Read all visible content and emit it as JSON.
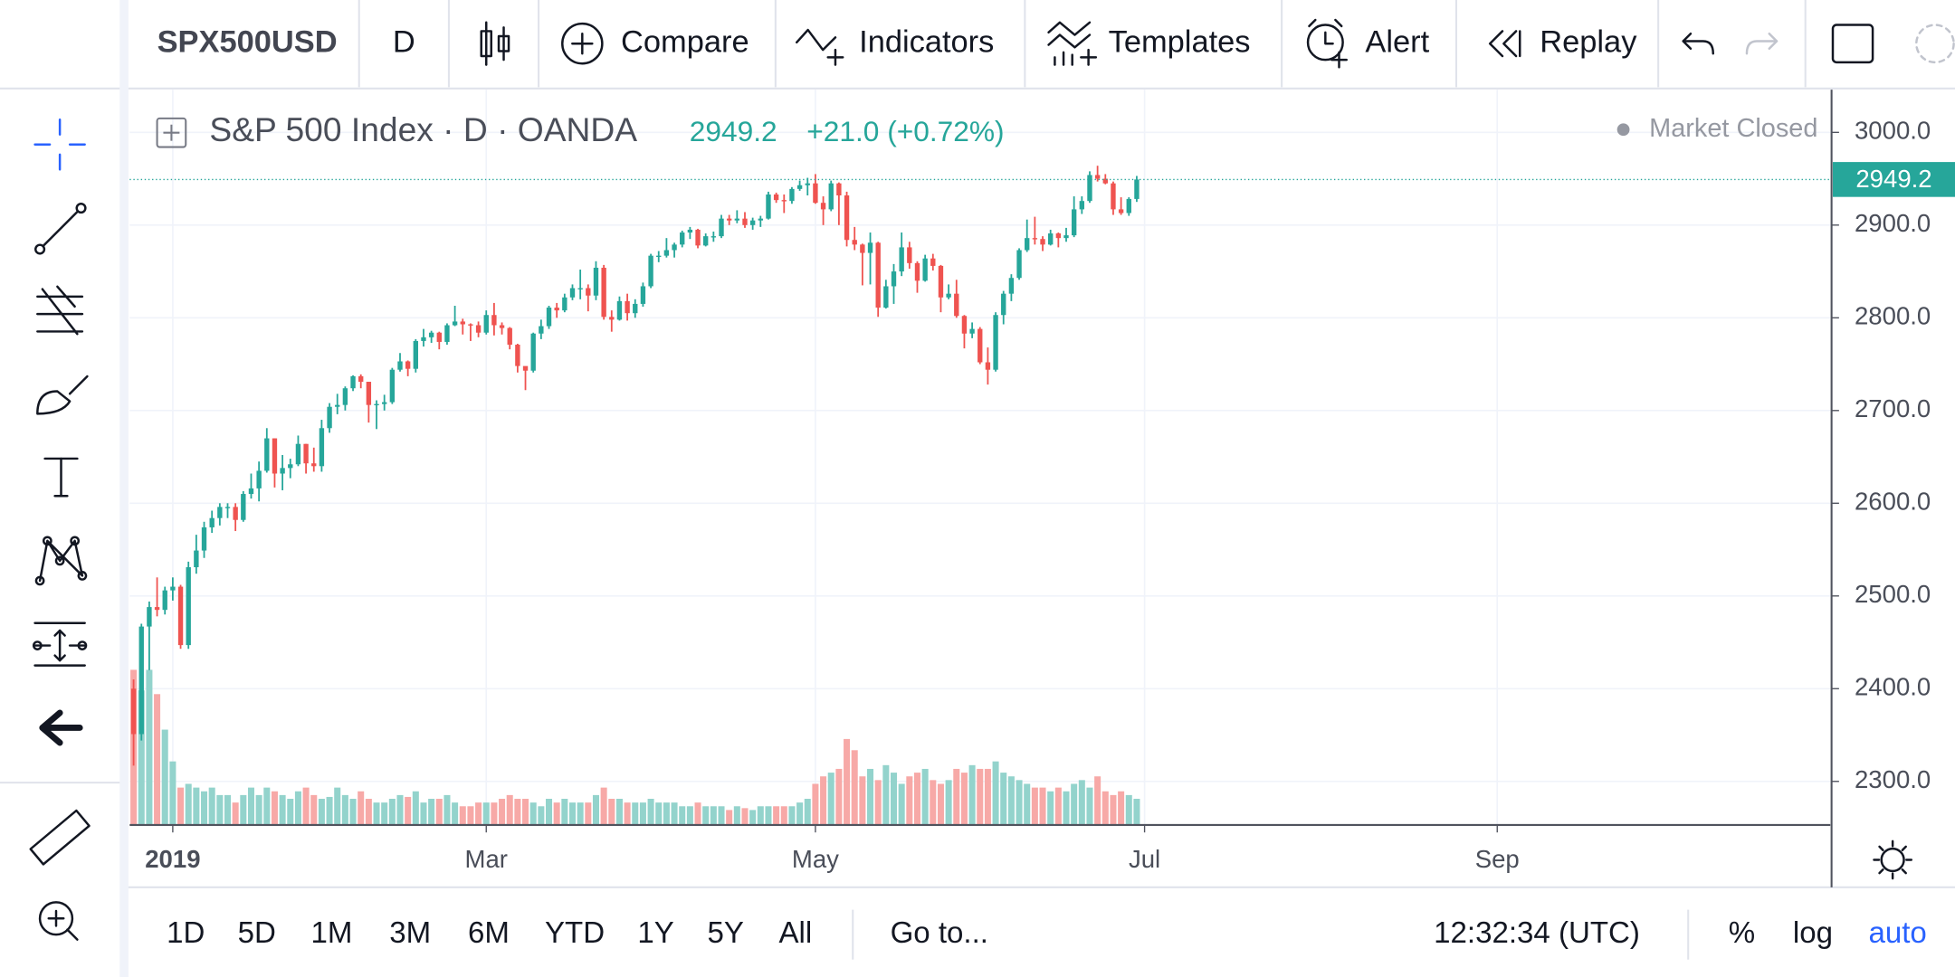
{
  "toolbar": {
    "symbol": "SPX500USD",
    "interval": "D",
    "compare": "Compare",
    "indicators": "Indicators",
    "templates": "Templates",
    "alert": "Alert",
    "replay": "Replay"
  },
  "legend": {
    "title": "S&P 500 Index · D · OANDA",
    "change": "+21.0 (+0.72%)",
    "status": "Market Closed"
  },
  "chart_data": {
    "type": "candlestick",
    "open": [
      2400,
      2351,
      2467,
      2488,
      2485,
      2506,
      2510,
      2447,
      2531,
      2549,
      2574,
      2584,
      2596,
      2596,
      2582,
      2610,
      2616,
      2635,
      2670,
      2632,
      2638,
      2642,
      2664,
      2643,
      2640,
      2681,
      2704,
      2706,
      2724,
      2737,
      2731,
      2706,
      2707,
      2709,
      2744,
      2753,
      2745,
      2775,
      2779,
      2784,
      2774,
      2792,
      2796,
      2793,
      2792,
      2784,
      2803,
      2792,
      2789,
      2771,
      2748,
      2743,
      2783,
      2791,
      2811,
      2808,
      2822,
      2832,
      2832,
      2824,
      2854,
      2801,
      2798,
      2818,
      2805,
      2815,
      2834,
      2867,
      2867,
      2873,
      2879,
      2892,
      2895,
      2878,
      2888,
      2888,
      2907,
      2905,
      2907,
      2900,
      2905,
      2907,
      2933,
      2927,
      2926,
      2939,
      2943,
      2945,
      2924,
      2917,
      2945,
      2932,
      2884,
      2879,
      2870,
      2881,
      2811,
      2834,
      2850,
      2876,
      2859,
      2840,
      2864,
      2856,
      2822,
      2826,
      2802,
      2783,
      2788,
      2752,
      2744,
      2803,
      2826,
      2843,
      2873,
      2886,
      2885,
      2879,
      2891,
      2886,
      2889,
      2917,
      2926,
      2954,
      2950,
      2945,
      2917,
      2913,
      2928.2
    ],
    "high": [
      2410,
      2470,
      2494,
      2520,
      2510,
      2520,
      2512,
      2537,
      2566,
      2580,
      2592,
      2600,
      2600,
      2600,
      2613,
      2632,
      2645,
      2681,
      2670,
      2652,
      2648,
      2673,
      2664,
      2660,
      2690,
      2708,
      2718,
      2726,
      2738,
      2739,
      2731,
      2711,
      2717,
      2746,
      2762,
      2754,
      2777,
      2788,
      2786,
      2785,
      2794,
      2813,
      2799,
      2794,
      2796,
      2808,
      2816,
      2795,
      2790,
      2772,
      2745,
      2784,
      2798,
      2813,
      2816,
      2826,
      2836,
      2852,
      2836,
      2861,
      2857,
      2808,
      2823,
      2826,
      2820,
      2838,
      2869,
      2872,
      2886,
      2881,
      2894,
      2898,
      2896,
      2891,
      2893,
      2911,
      2911,
      2916,
      2914,
      2908,
      2910,
      2936,
      2935,
      2933,
      2941,
      2948,
      2951,
      2955,
      2931,
      2948,
      2946,
      2936,
      2898,
      2880,
      2892,
      2882,
      2841,
      2858,
      2892,
      2882,
      2861,
      2868,
      2869,
      2857,
      2836,
      2841,
      2803,
      2795,
      2790,
      2768,
      2806,
      2829,
      2847,
      2875,
      2906,
      2909,
      2888,
      2895,
      2892,
      2897,
      2931,
      2931,
      2958,
      2964,
      2955,
      2947,
      2930,
      2930,
      2953
    ],
    "low": [
      2317,
      2344,
      2420,
      2478,
      2480,
      2495,
      2443,
      2443,
      2524,
      2541,
      2568,
      2576,
      2584,
      2570,
      2580,
      2605,
      2602,
      2633,
      2617,
      2614,
      2627,
      2640,
      2632,
      2634,
      2634,
      2676,
      2696,
      2700,
      2721,
      2724,
      2687,
      2680,
      2700,
      2707,
      2742,
      2737,
      2741,
      2769,
      2773,
      2766,
      2771,
      2791,
      2782,
      2775,
      2779,
      2782,
      2781,
      2782,
      2766,
      2741,
      2722,
      2741,
      2777,
      2788,
      2800,
      2806,
      2819,
      2820,
      2807,
      2819,
      2798,
      2785,
      2797,
      2797,
      2800,
      2812,
      2832,
      2860,
      2865,
      2865,
      2876,
      2885,
      2875,
      2877,
      2882,
      2886,
      2900,
      2902,
      2897,
      2895,
      2898,
      2906,
      2924,
      2913,
      2923,
      2937,
      2932,
      2923,
      2900,
      2915,
      2900,
      2877,
      2873,
      2835,
      2836,
      2801,
      2810,
      2815,
      2845,
      2853,
      2827,
      2839,
      2851,
      2806,
      2820,
      2800,
      2767,
      2778,
      2750,
      2728,
      2742,
      2793,
      2818,
      2841,
      2871,
      2879,
      2872,
      2878,
      2876,
      2882,
      2887,
      2912,
      2924,
      2947,
      2944,
      2911,
      2911,
      2910,
      2925
    ],
    "close": [
      2351,
      2467,
      2488,
      2485,
      2506,
      2510,
      2447,
      2531,
      2549,
      2574,
      2584,
      2596,
      2596,
      2582,
      2610,
      2616,
      2635,
      2670,
      2632,
      2638,
      2642,
      2664,
      2643,
      2640,
      2681,
      2704,
      2706,
      2724,
      2737,
      2731,
      2706,
      2707,
      2709,
      2744,
      2753,
      2745,
      2775,
      2779,
      2784,
      2774,
      2792,
      2796,
      2793,
      2792,
      2784,
      2803,
      2792,
      2789,
      2771,
      2748,
      2743,
      2783,
      2791,
      2811,
      2808,
      2822,
      2832,
      2832,
      2824,
      2854,
      2801,
      2798,
      2818,
      2805,
      2815,
      2834,
      2867,
      2867,
      2873,
      2879,
      2892,
      2895,
      2878,
      2888,
      2888,
      2907,
      2905,
      2907,
      2900,
      2905,
      2907,
      2933,
      2927,
      2926,
      2939,
      2943,
      2945,
      2924,
      2917,
      2945,
      2932,
      2884,
      2879,
      2870,
      2881,
      2811,
      2834,
      2850,
      2876,
      2859,
      2840,
      2864,
      2856,
      2822,
      2826,
      2802,
      2783,
      2788,
      2752,
      2744,
      2803,
      2826,
      2843,
      2873,
      2886,
      2885,
      2879,
      2891,
      2886,
      2889,
      2917,
      2926,
      2954,
      2950,
      2945,
      2917,
      2913,
      2928.2,
      2949.2
    ],
    "volume": [
      83,
      72,
      83,
      70,
      51,
      34,
      20,
      22,
      20,
      18,
      20,
      16,
      16,
      12,
      16,
      20,
      16,
      20,
      18,
      16,
      14,
      18,
      20,
      16,
      14,
      15,
      20,
      16,
      14,
      18,
      14,
      12,
      12,
      14,
      16,
      15,
      18,
      12,
      14,
      14,
      16,
      12,
      10,
      10,
      12,
      12,
      12,
      14,
      16,
      14,
      14,
      12,
      10,
      14,
      12,
      14,
      12,
      12,
      12,
      16,
      20,
      14,
      14,
      12,
      12,
      12,
      14,
      12,
      12,
      12,
      10,
      10,
      12,
      10,
      10,
      10,
      8,
      10,
      9,
      8,
      10,
      10,
      10,
      10,
      10,
      12,
      14,
      22,
      26,
      28,
      30,
      46,
      40,
      26,
      30,
      24,
      32,
      28,
      22,
      26,
      28,
      30,
      24,
      22,
      24,
      30,
      28,
      32,
      30,
      30,
      34,
      28,
      26,
      24,
      22,
      20,
      20,
      18,
      20,
      18,
      22,
      24,
      20,
      26,
      18,
      16,
      18,
      16,
      14
    ],
    "up_color": "#26a69a",
    "down_color": "#ef5350",
    "up_volume_color": "#93d3cc",
    "down_volume_color": "#f7a9a7",
    "volume_lim": [
      0,
      100
    ],
    "xlim": [
      -0.5,
      216.5
    ],
    "xticks": [
      {
        "value": 5,
        "label": "2019"
      },
      {
        "value": 45,
        "label": "Mar"
      },
      {
        "value": 87,
        "label": "May"
      },
      {
        "value": 129,
        "label": "Jul"
      },
      {
        "value": 174,
        "label": "Sep"
      }
    ],
    "ylim": [
      2253,
      3046
    ],
    "yticks": [
      {
        "value": 2300,
        "label": "2300.0"
      },
      {
        "value": 2400,
        "label": "2400.0"
      },
      {
        "value": 2500,
        "label": "2500.0"
      },
      {
        "value": 2600,
        "label": "2600.0"
      },
      {
        "value": 2700,
        "label": "2700.0"
      },
      {
        "value": 2800,
        "label": "2800.0"
      },
      {
        "value": 2900,
        "label": "2900.0"
      },
      {
        "value": 3000,
        "label": "3000.0"
      }
    ],
    "grid": true
  },
  "bottom_bar": {
    "ranges": [
      "1D",
      "5D",
      "1M",
      "3M",
      "6M",
      "YTD",
      "1Y",
      "5Y",
      "All"
    ],
    "goto": "Go to...",
    "time": "12:32:34 (UTC)",
    "percent": "%",
    "log": "log",
    "auto": "auto"
  }
}
